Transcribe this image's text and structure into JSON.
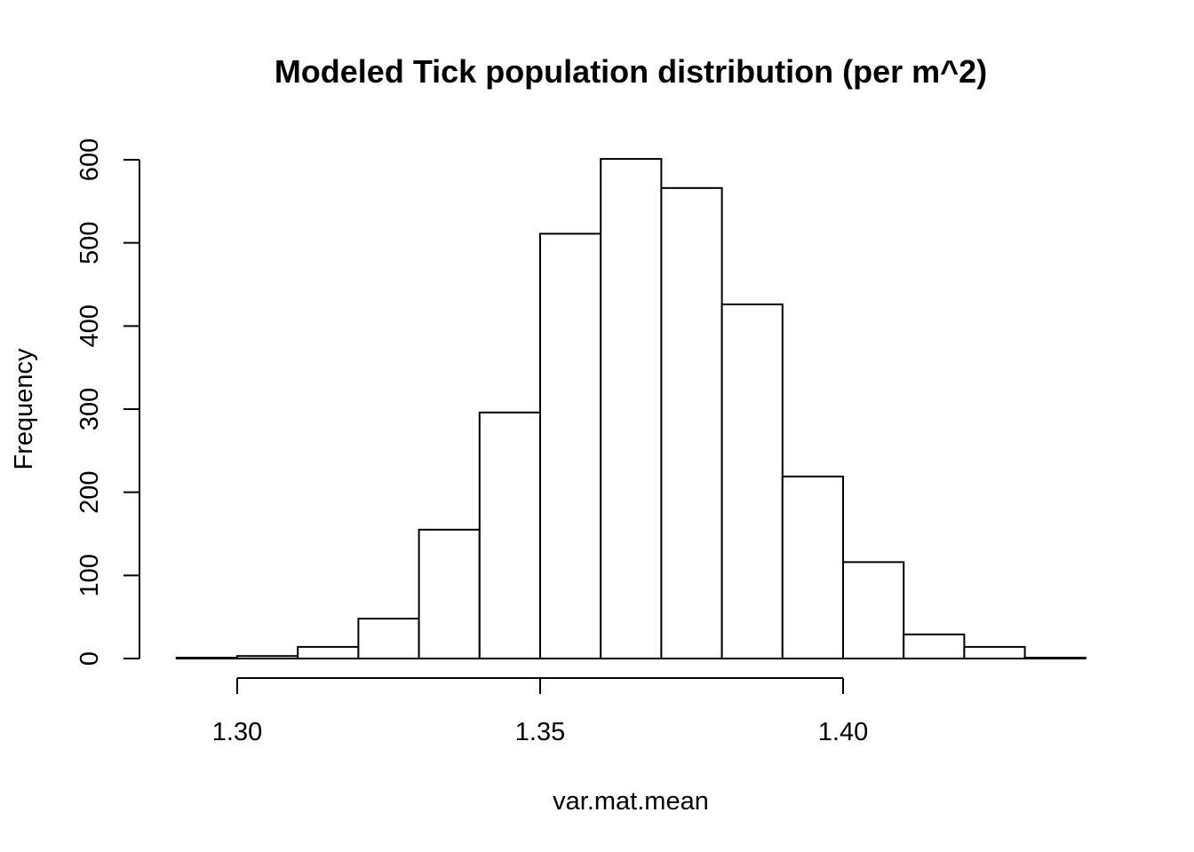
{
  "chart_data": {
    "type": "bar",
    "title": "Modeled Tick population distribution (per m^2)",
    "xlabel": "var.mat.mean",
    "ylabel": "Frequency",
    "bin_edges": [
      1.29,
      1.3,
      1.31,
      1.32,
      1.33,
      1.34,
      1.35,
      1.36,
      1.37,
      1.38,
      1.39,
      1.4,
      1.41,
      1.42,
      1.43,
      1.44
    ],
    "values": [
      1,
      3,
      14,
      48,
      155,
      296,
      511,
      601,
      566,
      426,
      219,
      116,
      29,
      14,
      1
    ],
    "xlim": [
      1.29,
      1.44
    ],
    "ylim": [
      0,
      600
    ],
    "x_ticks": [
      1.3,
      1.35,
      1.4
    ],
    "x_tick_labels": [
      "1.30",
      "1.35",
      "1.40"
    ],
    "y_ticks": [
      0,
      100,
      200,
      300,
      400,
      500,
      600
    ],
    "y_tick_labels": [
      "0",
      "100",
      "200",
      "300",
      "400",
      "500",
      "600"
    ],
    "grid": false,
    "legend": "none",
    "bar_fill": "#ffffff",
    "bar_stroke": "#000000"
  }
}
